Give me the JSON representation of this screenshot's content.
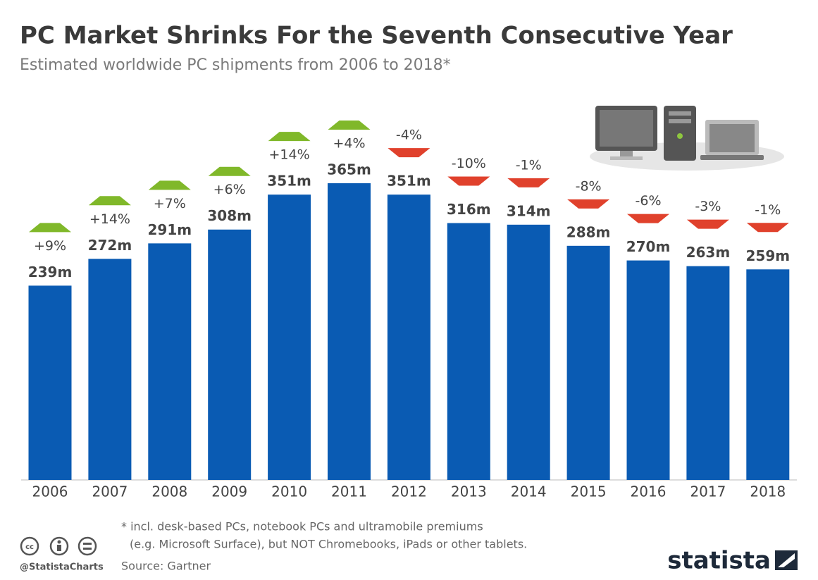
{
  "chart_data": {
    "type": "bar",
    "title": "PC Market Shrinks For the Seventh Consecutive Year",
    "subtitle": "Estimated worldwide PC shipments from 2006 to 2018*",
    "categories": [
      "2006",
      "2007",
      "2008",
      "2009",
      "2010",
      "2011",
      "2012",
      "2013",
      "2014",
      "2015",
      "2016",
      "2017",
      "2018"
    ],
    "values": [
      239,
      272,
      291,
      308,
      351,
      365,
      351,
      316,
      314,
      288,
      270,
      263,
      259
    ],
    "value_labels": [
      "239m",
      "272m",
      "291m",
      "308m",
      "351m",
      "365m",
      "351m",
      "316m",
      "314m",
      "288m",
      "270m",
      "263m",
      "259m"
    ],
    "color": "#0a5bb3",
    "changes": [
      9,
      14,
      7,
      6,
      14,
      4,
      -4,
      -10,
      -1,
      -8,
      -6,
      -3,
      -1
    ],
    "change_labels": [
      "+9%",
      "+14%",
      "+7%",
      "+6%",
      "+14%",
      "+4%",
      "-4%",
      "-10%",
      "-1%",
      "-8%",
      "-6%",
      "-3%",
      "-1%"
    ],
    "up_color": "#80b82a",
    "down_color": "#e0412c",
    "note": [
      "* incl. desk-based PCs, notebook PCs and ultramobile premiums",
      "(e.g. Microsoft Surface), but NOT Chromebooks, iPads or other tablets."
    ],
    "source": "Source: Gartner",
    "credit": "@StatistaCharts",
    "brand": "statista"
  }
}
